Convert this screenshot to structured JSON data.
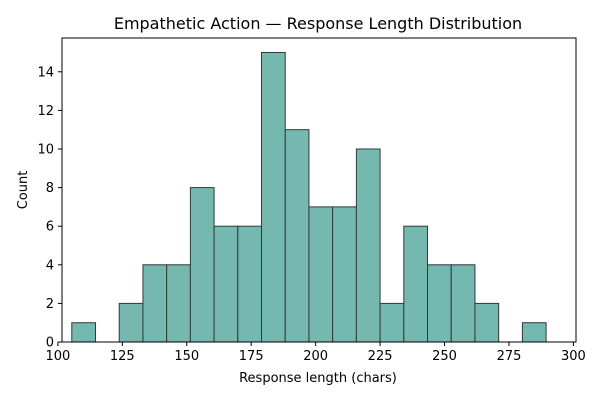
{
  "chart_data": {
    "type": "bar",
    "title": "Empathetic Action — Response Length Distribution",
    "xlabel": "Response length (chars)",
    "ylabel": "Count",
    "xlim": [
      101.6,
      301.0
    ],
    "ylim": [
      0,
      15.75
    ],
    "xticks": [
      100,
      125,
      150,
      175,
      200,
      225,
      250,
      275,
      300
    ],
    "yticks": [
      0,
      2,
      4,
      6,
      8,
      10,
      12,
      14
    ],
    "bar_color": "#75b8b0",
    "bar_edge_color": "#2f3b39",
    "grid": false,
    "bins": [
      {
        "start": 105.4,
        "end": 114.6,
        "count": 1
      },
      {
        "start": 114.6,
        "end": 123.8,
        "count": 0
      },
      {
        "start": 123.8,
        "end": 133.0,
        "count": 2
      },
      {
        "start": 133.0,
        "end": 142.2,
        "count": 4
      },
      {
        "start": 142.2,
        "end": 151.4,
        "count": 4
      },
      {
        "start": 151.4,
        "end": 160.6,
        "count": 8
      },
      {
        "start": 160.6,
        "end": 169.8,
        "count": 6
      },
      {
        "start": 169.8,
        "end": 179.0,
        "count": 6
      },
      {
        "start": 179.0,
        "end": 188.2,
        "count": 15
      },
      {
        "start": 188.2,
        "end": 197.4,
        "count": 11
      },
      {
        "start": 197.4,
        "end": 206.6,
        "count": 7
      },
      {
        "start": 206.6,
        "end": 215.8,
        "count": 7
      },
      {
        "start": 215.8,
        "end": 225.0,
        "count": 10
      },
      {
        "start": 225.0,
        "end": 234.2,
        "count": 2
      },
      {
        "start": 234.2,
        "end": 243.4,
        "count": 6
      },
      {
        "start": 243.4,
        "end": 252.6,
        "count": 4
      },
      {
        "start": 252.6,
        "end": 261.8,
        "count": 4
      },
      {
        "start": 261.8,
        "end": 271.0,
        "count": 2
      },
      {
        "start": 271.0,
        "end": 280.2,
        "count": 0
      },
      {
        "start": 280.2,
        "end": 289.4,
        "count": 1
      }
    ]
  }
}
